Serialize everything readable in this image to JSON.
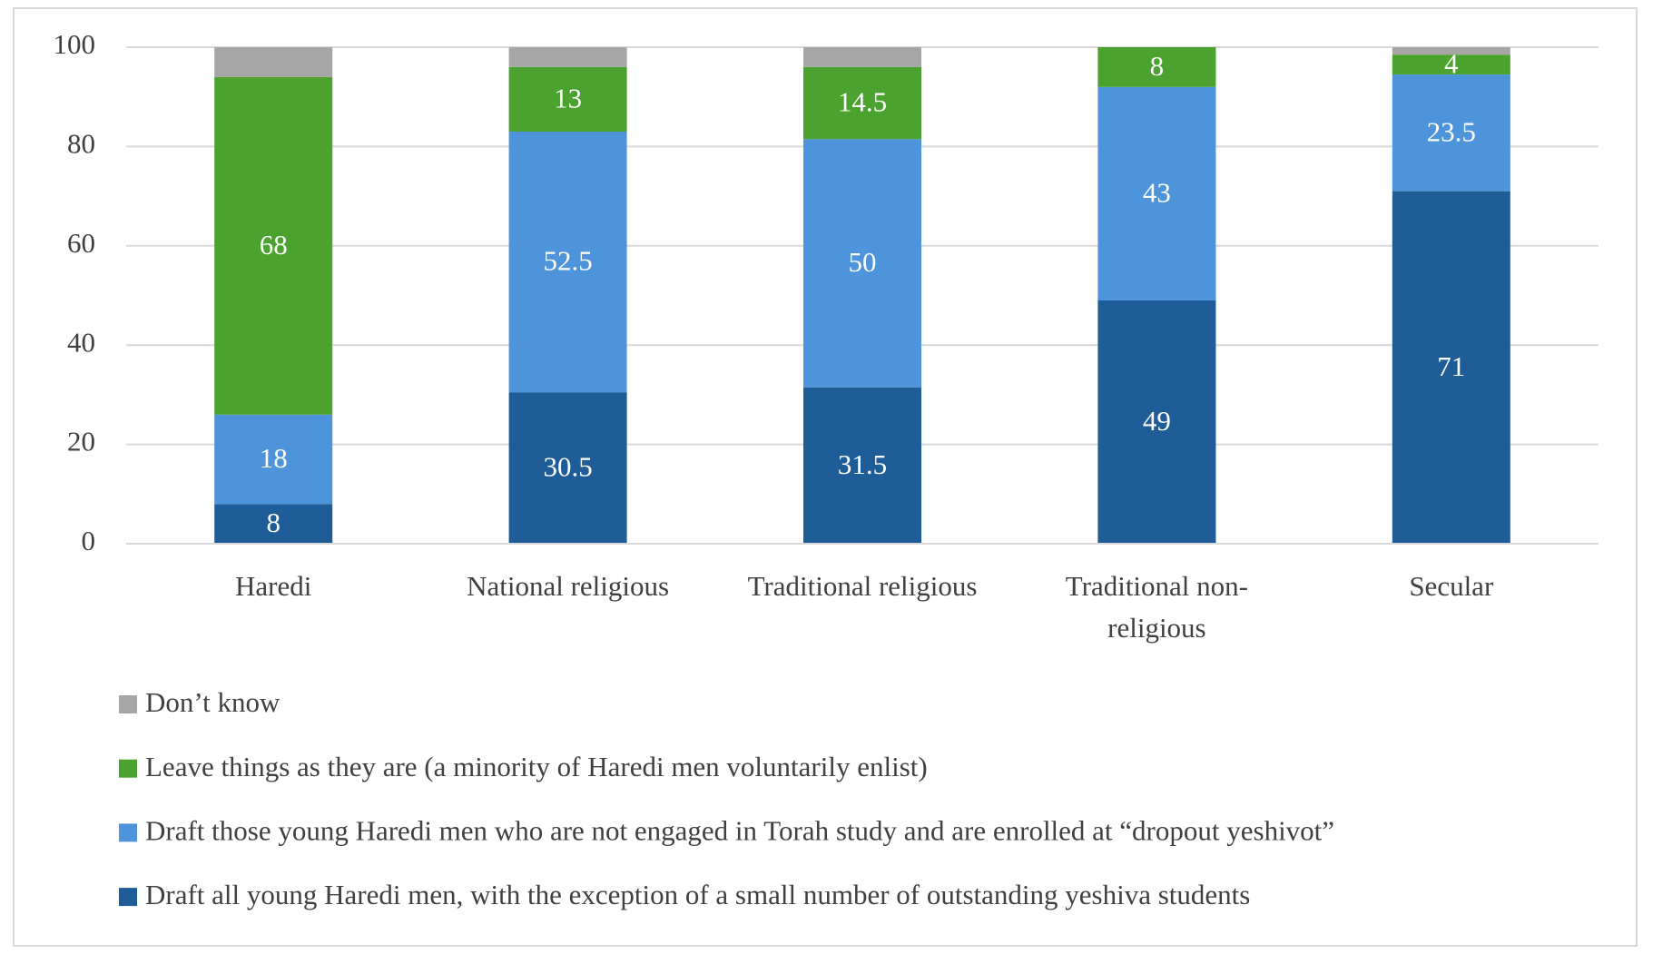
{
  "chart_data": {
    "type": "stacked_bar",
    "categories": [
      "Haredi",
      "National religious",
      "Traditional religious",
      "Traditional non-religious",
      "Secular"
    ],
    "series": [
      {
        "name": "Draft all young Haredi men, with the exception of a small number of outstanding yeshiva students",
        "color": "#1f5d99",
        "values": [
          8,
          30.5,
          31.5,
          49,
          71
        ],
        "show_labels": true
      },
      {
        "name": "Draft those young Haredi men who are not engaged in Torah study and are enrolled at “dropout yeshivot”",
        "color": "#4d94da",
        "values": [
          18,
          52.5,
          50,
          43,
          23.5
        ],
        "show_labels": true
      },
      {
        "name": "Leave things as they are (a minority of Haredi men voluntarily enlist)",
        "color": "#4ba22e",
        "values": [
          68,
          13,
          14.5,
          8,
          4
        ],
        "show_labels": true
      },
      {
        "name": "Don’t know",
        "color": "#a6a6a6",
        "values": [
          6,
          4,
          4,
          0,
          1.5
        ],
        "show_labels": false
      }
    ],
    "ylim": [
      0,
      100
    ],
    "yticks": [
      0,
      20,
      40,
      60,
      80,
      100
    ],
    "grid": true
  }
}
